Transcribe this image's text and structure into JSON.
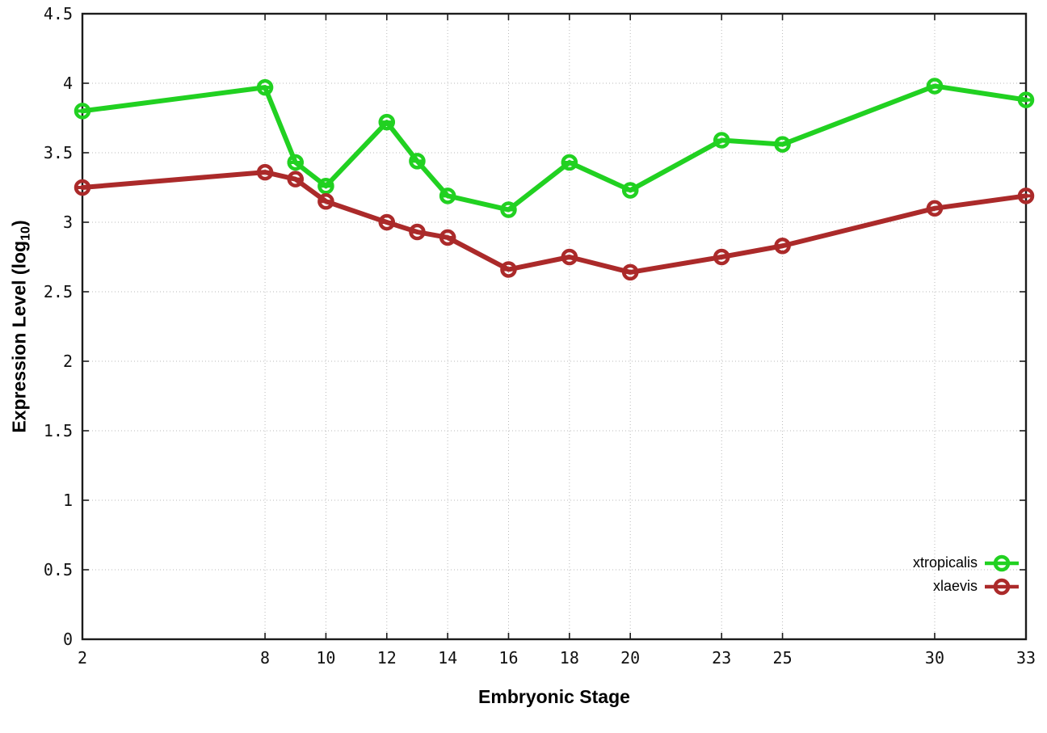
{
  "chart_data": {
    "type": "line",
    "title": "",
    "xlabel": "Embryonic Stage",
    "ylabel": "Expression Level (log10)",
    "ylabel_parts": {
      "main": "Expression Level (log",
      "sub": "10",
      "end": ")"
    },
    "xlim": [
      2,
      33
    ],
    "ylim": [
      0,
      4.5
    ],
    "grid": true,
    "legend_position": "inside-bottom-right",
    "marker": "open-circle-with-error-cap",
    "x": [
      2,
      8,
      9,
      10,
      12,
      13,
      14,
      16,
      18,
      20,
      23,
      25,
      30,
      33
    ],
    "x_ticks": [
      2,
      8,
      10,
      12,
      14,
      16,
      18,
      20,
      23,
      25,
      30,
      33
    ],
    "x_tick_labels": [
      "2",
      "8",
      "10",
      "12",
      "14",
      "16",
      "18",
      "20",
      "23",
      "25",
      "30",
      "33"
    ],
    "y_ticks": [
      0,
      0.5,
      1,
      1.5,
      2,
      2.5,
      3,
      3.5,
      4,
      4.5
    ],
    "y_tick_labels": [
      "0",
      "0.5",
      "1",
      "1.5",
      "2",
      "2.5",
      "3",
      "3.5",
      "4",
      "4.5"
    ],
    "series": [
      {
        "name": "xtropicalis",
        "color": "#21d121",
        "values": [
          3.8,
          3.97,
          3.43,
          3.26,
          3.72,
          3.44,
          3.19,
          3.09,
          3.43,
          3.23,
          3.59,
          3.56,
          3.98,
          3.88
        ]
      },
      {
        "name": "xlaevis",
        "color": "#ab2a2a",
        "values": [
          3.25,
          3.36,
          3.31,
          3.15,
          3.0,
          2.93,
          2.89,
          2.66,
          2.75,
          2.64,
          2.75,
          2.83,
          3.1,
          3.19
        ]
      }
    ]
  }
}
